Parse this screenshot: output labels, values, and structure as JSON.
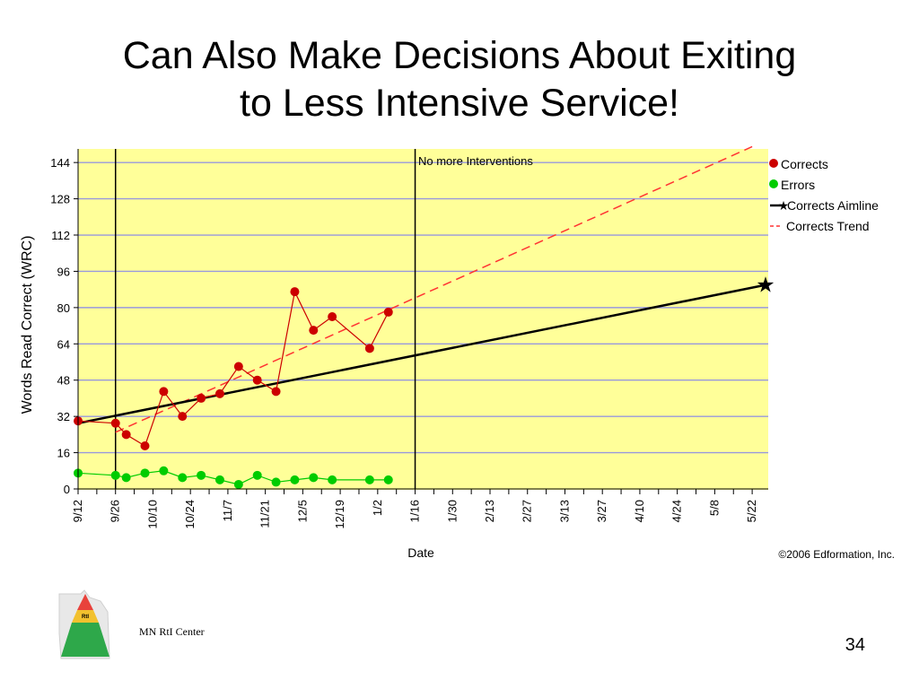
{
  "slide": {
    "title_line1": "Can Also Make Decisions About Exiting",
    "title_line2": "to Less Intensive Service!",
    "footer_label": "MN RtI Center",
    "slide_number": "34",
    "logo_text": "RtI"
  },
  "chart_data": {
    "type": "line",
    "xlabel": "Date",
    "ylabel": "Words Read Correct (WRC)",
    "ylim": [
      0,
      150
    ],
    "yticks": [
      0,
      16,
      32,
      48,
      64,
      80,
      96,
      112,
      128,
      144
    ],
    "xticks": [
      "9/12",
      "9/26",
      "10/10",
      "10/24",
      "11/7",
      "11/21",
      "12/5",
      "12/19",
      "1/2",
      "1/16",
      "1/30",
      "2/13",
      "2/27",
      "3/13",
      "3/27",
      "4/10",
      "4/24",
      "5/8",
      "5/22"
    ],
    "grid": "horizontal",
    "background_color": "#ffff99",
    "annotation": "No more Interventions",
    "copyright": "©2006 Edformation, Inc.",
    "phase_lines": [
      "9/26",
      "1/16"
    ],
    "legend_position": "right",
    "legend": [
      "Corrects",
      "Errors",
      "Corrects Aimline",
      "Corrects Trend"
    ],
    "series": [
      {
        "name": "Corrects",
        "color": "#cc0000",
        "points": [
          {
            "x": "9/12",
            "y": 30
          },
          {
            "x": "9/26",
            "y": 29
          },
          {
            "x": "9/30",
            "y": 24
          },
          {
            "x": "10/7",
            "y": 19
          },
          {
            "x": "10/14",
            "y": 43
          },
          {
            "x": "10/21",
            "y": 32
          },
          {
            "x": "10/28",
            "y": 40
          },
          {
            "x": "11/4",
            "y": 42
          },
          {
            "x": "11/11",
            "y": 54
          },
          {
            "x": "11/18",
            "y": 48
          },
          {
            "x": "11/25",
            "y": 43
          },
          {
            "x": "12/2",
            "y": 87
          },
          {
            "x": "12/9",
            "y": 70
          },
          {
            "x": "12/16",
            "y": 76
          },
          {
            "x": "12/30",
            "y": 62
          },
          {
            "x": "1/6",
            "y": 78
          }
        ]
      },
      {
        "name": "Errors",
        "color": "#00cc00",
        "points": [
          {
            "x": "9/12",
            "y": 7
          },
          {
            "x": "9/26",
            "y": 6
          },
          {
            "x": "9/30",
            "y": 5
          },
          {
            "x": "10/7",
            "y": 7
          },
          {
            "x": "10/14",
            "y": 8
          },
          {
            "x": "10/21",
            "y": 5
          },
          {
            "x": "10/28",
            "y": 6
          },
          {
            "x": "11/4",
            "y": 4
          },
          {
            "x": "11/11",
            "y": 2
          },
          {
            "x": "11/18",
            "y": 6
          },
          {
            "x": "11/25",
            "y": 3
          },
          {
            "x": "12/2",
            "y": 4
          },
          {
            "x": "12/9",
            "y": 5
          },
          {
            "x": "12/16",
            "y": 4
          },
          {
            "x": "12/30",
            "y": 4
          },
          {
            "x": "1/6",
            "y": 4
          }
        ]
      },
      {
        "name": "Corrects Aimline",
        "color": "#000000",
        "points": [
          {
            "x": "9/12",
            "y": 29
          },
          {
            "x": "5/27",
            "y": 90
          }
        ]
      },
      {
        "name": "Corrects Trend",
        "color": "#ff3333",
        "points": [
          {
            "x": "9/26",
            "y": 25
          },
          {
            "x": "5/22",
            "y": 151
          }
        ]
      }
    ]
  }
}
